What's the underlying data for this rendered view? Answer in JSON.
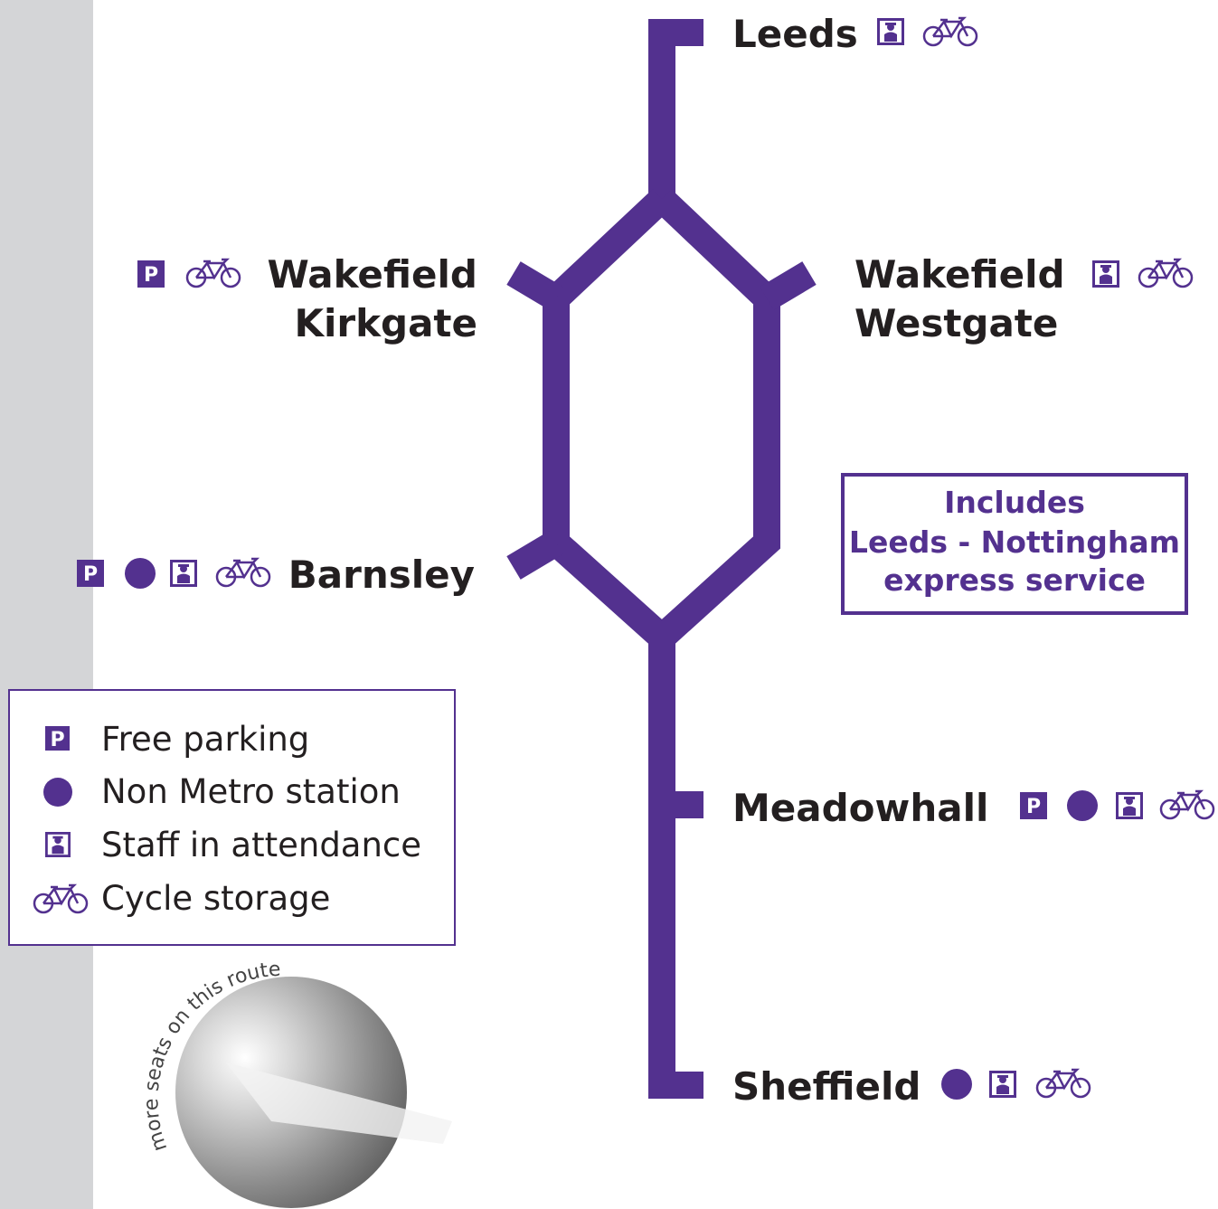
{
  "stations": {
    "leeds": "Leeds",
    "wakefield_kirkgate": [
      "Wakefield",
      "Kirkgate"
    ],
    "wakefield_westgate": [
      "Wakefield",
      "Westgate"
    ],
    "barnsley": "Barnsley",
    "meadowhall": "Meadowhall",
    "sheffield": "Sheffield"
  },
  "parking_symbol": "P",
  "express_box": [
    "Includes",
    "Leeds - Nottingham",
    "express service"
  ],
  "legend": [
    "Free parking",
    "Non Metro station",
    "Staff in attendance",
    "Cycle storage"
  ],
  "promo": "more seats on this route"
}
